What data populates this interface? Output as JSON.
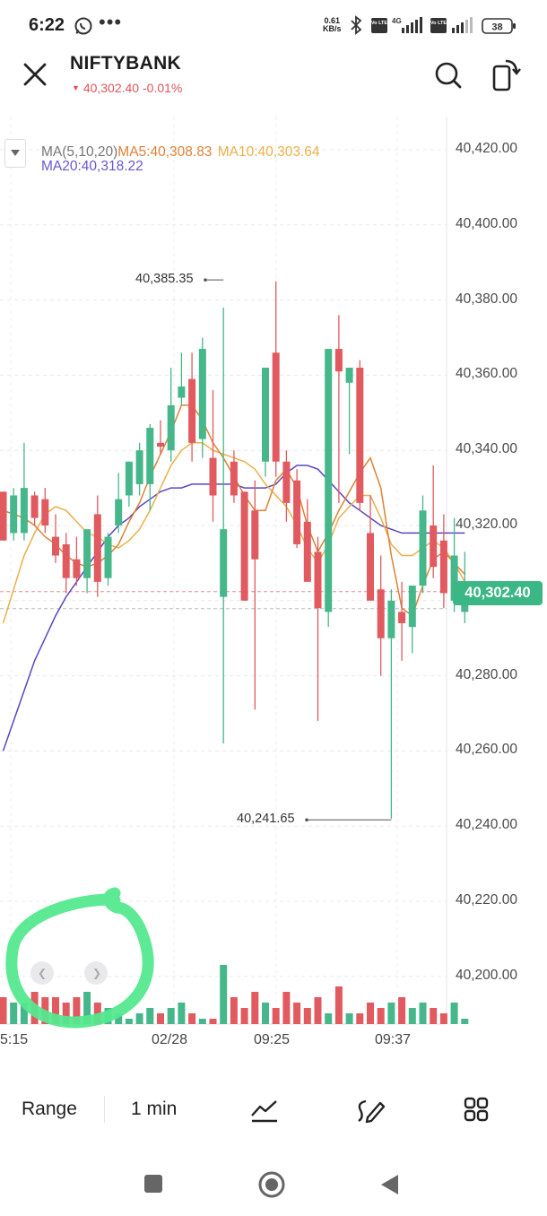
{
  "status_bar": {
    "time": "6:22",
    "net_speed_value": "0.61",
    "net_speed_unit": "KB/s",
    "sim1_tag": "Vo LTE",
    "network_type": "4G",
    "sim2_tag": "Vo LTE",
    "battery": "38"
  },
  "header": {
    "title": "NIFTYBANK",
    "price": "40,302.40",
    "change": "-0.01%",
    "direction": "down"
  },
  "legend": {
    "toggle_icon": "triangle-down-icon",
    "ma_label": "MA(5,10,20)",
    "ma5": "MA5:40,308.83",
    "ma10": "MA10:40,303.64",
    "ma20": "MA20:40,318.22"
  },
  "chart_data": {
    "type": "candlestick",
    "instrument": "NIFTYBANK",
    "interval": "1 min",
    "y_axis": {
      "ticks": [
        "40,420.00",
        "40,400.00",
        "40,380.00",
        "40,360.00",
        "40,340.00",
        "40,320.00",
        "40,300.00",
        "40,280.00",
        "40,260.00",
        "40,240.00",
        "40,220.00",
        "40,200.00"
      ],
      "range": [
        40186,
        40424
      ]
    },
    "x_axis": {
      "ticks": [
        "5:15",
        "02/28",
        "09:25",
        "09:37"
      ]
    },
    "last_price_label": "40,302.40",
    "last_price": 40302.4,
    "high_annotation": "40,385.35",
    "high": 40385.35,
    "low_annotation": "40,241.65",
    "low": 40241.65,
    "candles": [
      {
        "o": 40329,
        "h": 40329,
        "c": 40316,
        "l": 40316
      },
      {
        "o": 40318,
        "h": 40330,
        "c": 40328,
        "l": 40316
      },
      {
        "o": 40318,
        "h": 40342,
        "c": 40330,
        "l": 40316
      },
      {
        "o": 40328,
        "h": 40329,
        "c": 40322,
        "l": 40320
      },
      {
        "o": 40327,
        "h": 40330,
        "c": 40320,
        "l": 40318
      },
      {
        "o": 40317,
        "h": 40323,
        "c": 40312,
        "l": 40310
      },
      {
        "o": 40315,
        "h": 40318,
        "c": 40306,
        "l": 40302
      },
      {
        "o": 40311,
        "h": 40317,
        "c": 40306,
        "l": 40304
      },
      {
        "o": 40306,
        "h": 40318,
        "c": 40319,
        "l": 40302
      },
      {
        "o": 40323,
        "h": 40328,
        "c": 40305,
        "l": 40301
      },
      {
        "o": 40306,
        "h": 40318,
        "c": 40317,
        "l": 40304
      },
      {
        "o": 40320,
        "h": 40334,
        "c": 40327,
        "l": 40318
      },
      {
        "o": 40328,
        "h": 40337,
        "c": 40337,
        "l": 40325
      },
      {
        "o": 40331,
        "h": 40342,
        "c": 40340,
        "l": 40328
      },
      {
        "o": 40331,
        "h": 40347,
        "c": 40346,
        "l": 40324
      },
      {
        "o": 40342,
        "h": 40348,
        "c": 40341,
        "l": 40339
      },
      {
        "o": 40340,
        "h": 40362,
        "c": 40352,
        "l": 40337
      },
      {
        "o": 40354,
        "h": 40366,
        "c": 40357,
        "l": 40352
      },
      {
        "o": 40359,
        "h": 40366,
        "c": 40342,
        "l": 40337
      },
      {
        "o": 40343,
        "h": 40370,
        "c": 40367,
        "l": 40338
      },
      {
        "o": 40338,
        "h": 40356,
        "c": 40328,
        "l": 40321
      },
      {
        "o": 40301,
        "h": 40378,
        "c": 40319,
        "l": 40262
      },
      {
        "o": 40337,
        "h": 40340,
        "c": 40328,
        "l": 40326
      },
      {
        "o": 40329,
        "h": 40329,
        "c": 40300,
        "l": 40300
      },
      {
        "o": 40324,
        "h": 40332,
        "c": 40311,
        "l": 40271
      },
      {
        "o": 40337,
        "h": 40362,
        "c": 40362,
        "l": 40333
      },
      {
        "o": 40366,
        "h": 40385,
        "c": 40337,
        "l": 40333
      },
      {
        "o": 40337,
        "h": 40340,
        "c": 40326,
        "l": 40321
      },
      {
        "o": 40332,
        "h": 40335,
        "c": 40315,
        "l": 40314
      },
      {
        "o": 40321,
        "h": 40327,
        "c": 40305,
        "l": 40306
      },
      {
        "o": 40313,
        "h": 40317,
        "c": 40298,
        "l": 40268
      },
      {
        "o": 40297,
        "h": 40367,
        "c": 40367,
        "l": 40293
      },
      {
        "o": 40367,
        "h": 40376,
        "c": 40361,
        "l": 40326
      },
      {
        "o": 40358,
        "h": 40362,
        "c": 40362,
        "l": 40339
      },
      {
        "o": 40362,
        "h": 40364,
        "c": 40326,
        "l": 40324
      },
      {
        "o": 40318,
        "h": 40328,
        "c": 40300,
        "l": 40300
      },
      {
        "o": 40303,
        "h": 40312,
        "c": 40290,
        "l": 40280
      },
      {
        "o": 40290,
        "h": 40303,
        "c": 40300,
        "l": 40242
      },
      {
        "o": 40297,
        "h": 40305,
        "c": 40294,
        "l": 40284
      },
      {
        "o": 40293,
        "h": 40303,
        "c": 40304,
        "l": 40286
      },
      {
        "o": 40304,
        "h": 40328,
        "c": 40324,
        "l": 40302
      },
      {
        "o": 40320,
        "h": 40336,
        "c": 40309,
        "l": 40306
      },
      {
        "o": 40316,
        "h": 40323,
        "c": 40302,
        "l": 40298
      },
      {
        "o": 40300,
        "h": 40322,
        "c": 40312,
        "l": 40297
      },
      {
        "o": 40297,
        "h": 40313,
        "c": 40305,
        "l": 40294
      }
    ],
    "ma5": [
      40324,
      40323,
      40322,
      40320,
      40317,
      40315,
      40312,
      40310,
      40309,
      40310,
      40312,
      40315,
      40321,
      40326,
      40333,
      40339,
      40345,
      40352,
      40352,
      40348,
      40342,
      40338,
      40333,
      40328,
      40324,
      40324,
      40332,
      40335,
      40330,
      40320,
      40313,
      40318,
      40324,
      40329,
      40334,
      40338,
      40330,
      40312,
      40298,
      40296,
      40304,
      40311,
      40313,
      40310,
      40307
    ],
    "ma10": [
      40294,
      40303,
      40312,
      40318,
      40323,
      40325,
      40324,
      40321,
      40318,
      40317,
      40315,
      40314,
      40316,
      40319,
      40324,
      40330,
      40336,
      40340,
      40342,
      40342,
      40340,
      40339,
      40338,
      40337,
      40335,
      40331,
      40328,
      40325,
      40320,
      40314,
      40310,
      40315,
      40322,
      40325,
      40328,
      40328,
      40322,
      40315,
      40312,
      40312,
      40314,
      40316,
      40314,
      40310,
      40305
    ],
    "ma20": [
      40260,
      40268,
      40276,
      40284,
      40290,
      40296,
      40301,
      40305,
      40309,
      40313,
      40317,
      40320,
      40322,
      40325,
      40327,
      40329,
      40330,
      40330,
      40331,
      40331,
      40331,
      40331,
      40331,
      40330,
      40330,
      40330,
      40331,
      40334,
      40336,
      40336,
      40335,
      40332,
      40329,
      40326,
      40324,
      40322,
      40320,
      40319,
      40318,
      40318,
      40318,
      40318,
      40318,
      40318,
      40318
    ],
    "volume": [
      5,
      4,
      4,
      6,
      5,
      5,
      4,
      5,
      6,
      4,
      3,
      2,
      1,
      2,
      3,
      2,
      3,
      4,
      2,
      1,
      1,
      11,
      5,
      3,
      6,
      4,
      3,
      6,
      4,
      3,
      5,
      2,
      7,
      2,
      2,
      4,
      3,
      4,
      5,
      3,
      4,
      3,
      2,
      4,
      1
    ],
    "gridlines": true
  },
  "toolbar": {
    "range_label": "Range",
    "interval_label": "1 min",
    "indicator_icon": "chart-indicator-icon",
    "draw_icon": "drawing-pen-icon",
    "layout_icon": "grid-layout-icon"
  },
  "colors": {
    "up": "#45b78a",
    "down": "#e05a60",
    "ma5": "#dd8236",
    "ma10": "#e8b04a",
    "ma20": "#5a45c0",
    "accent_green": "#3bb685",
    "annotation_highlight": "#55e88e"
  }
}
